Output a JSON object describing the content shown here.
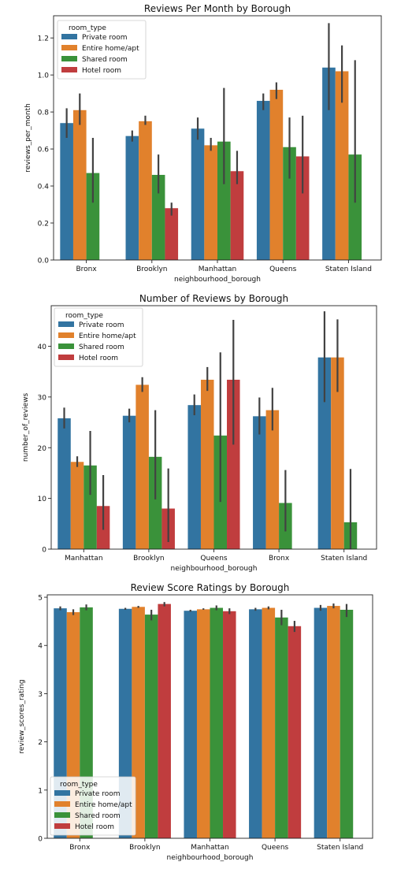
{
  "colors": {
    "Private room": "#3274a1",
    "Entire home/apt": "#e1812c",
    "Shared room": "#3a923a",
    "Hotel room": "#c03d3e",
    "error_bar": "#424242"
  },
  "chart_data": [
    {
      "type": "bar",
      "title": "Reviews Per Month by Borough",
      "xlabel": "neighbourhood_borough",
      "ylabel": "reviews_per_month",
      "categories": [
        "Bronx",
        "Brooklyn",
        "Manhattan",
        "Queens",
        "Staten Island"
      ],
      "ylim": [
        0,
        1.32
      ],
      "yticks": [
        0.0,
        0.2,
        0.4,
        0.6,
        0.8,
        1.0,
        1.2
      ],
      "ytick_labels": [
        "0.0",
        "0.2",
        "0.4",
        "0.6",
        "0.8",
        "1.0",
        "1.2"
      ],
      "legend": {
        "title": "room_type",
        "placement": "top-left"
      },
      "series": [
        {
          "name": "Private room",
          "values": [
            0.74,
            0.67,
            0.71,
            0.86,
            1.04
          ],
          "err_low": [
            0.66,
            0.64,
            0.65,
            0.81,
            0.81
          ],
          "err_high": [
            0.82,
            0.7,
            0.77,
            0.9,
            1.28
          ]
        },
        {
          "name": "Entire home/apt",
          "values": [
            0.81,
            0.75,
            0.62,
            0.92,
            1.02
          ],
          "err_low": [
            0.73,
            0.73,
            0.59,
            0.87,
            0.85
          ],
          "err_high": [
            0.9,
            0.78,
            0.66,
            0.96,
            1.16
          ]
        },
        {
          "name": "Shared room",
          "values": [
            0.47,
            0.46,
            0.64,
            0.61,
            0.57
          ],
          "err_low": [
            0.31,
            0.36,
            0.41,
            0.44,
            0.31
          ],
          "err_high": [
            0.66,
            0.57,
            0.93,
            0.77,
            1.08
          ]
        },
        {
          "name": "Hotel room",
          "values": [
            null,
            0.28,
            0.48,
            0.56,
            null
          ],
          "err_low": [
            null,
            0.24,
            0.41,
            0.36,
            null
          ],
          "err_high": [
            null,
            0.31,
            0.59,
            0.78,
            null
          ]
        }
      ]
    },
    {
      "type": "bar",
      "title": "Number of Reviews by Borough",
      "xlabel": "neighbourhood_borough",
      "ylabel": "number_of_reviews",
      "categories": [
        "Manhattan",
        "Brooklyn",
        "Queens",
        "Bronx",
        "Staten Island"
      ],
      "ylim": [
        0,
        48
      ],
      "yticks": [
        0,
        10,
        20,
        30,
        40
      ],
      "ytick_labels": [
        "0",
        "10",
        "20",
        "30",
        "40"
      ],
      "legend": {
        "title": "room_type",
        "placement": "top-left"
      },
      "series": [
        {
          "name": "Private room",
          "values": [
            25.8,
            26.3,
            28.4,
            26.2,
            37.8
          ],
          "err_low": [
            23.8,
            25.0,
            26.4,
            22.6,
            29.0
          ],
          "err_high": [
            27.9,
            27.7,
            30.5,
            29.9,
            46.9
          ]
        },
        {
          "name": "Entire home/apt",
          "values": [
            17.2,
            32.4,
            33.4,
            27.4,
            37.8
          ],
          "err_low": [
            16.2,
            31.0,
            31.2,
            23.4,
            31.0
          ],
          "err_high": [
            18.3,
            33.9,
            35.9,
            31.8,
            45.3
          ]
        },
        {
          "name": "Shared room",
          "values": [
            16.5,
            18.2,
            22.4,
            9.1,
            5.3
          ],
          "err_low": [
            10.7,
            9.8,
            9.3,
            3.5,
            0.0
          ],
          "err_high": [
            23.3,
            27.4,
            38.8,
            15.6,
            15.8
          ]
        },
        {
          "name": "Hotel room",
          "values": [
            8.5,
            8.0,
            33.4,
            null,
            null
          ],
          "err_low": [
            3.8,
            1.4,
            20.6,
            null,
            null
          ],
          "err_high": [
            14.6,
            15.9,
            45.2,
            null,
            null
          ]
        }
      ]
    },
    {
      "type": "bar",
      "title": "Review Score Ratings by Borough",
      "xlabel": "neighbourhood_borough",
      "ylabel": "review_scores_rating",
      "categories": [
        "Bronx",
        "Brooklyn",
        "Manhattan",
        "Queens",
        "Staten Island"
      ],
      "ylim": [
        0,
        5.05
      ],
      "yticks": [
        0,
        1,
        2,
        3,
        4,
        5
      ],
      "ytick_labels": [
        "0",
        "1",
        "2",
        "3",
        "4",
        "5"
      ],
      "legend": {
        "title": "room_type",
        "placement": "lower left"
      },
      "series": [
        {
          "name": "Private room",
          "values": [
            4.77,
            4.76,
            4.72,
            4.75,
            4.78
          ],
          "err_low": [
            4.73,
            4.74,
            4.7,
            4.72,
            4.72
          ],
          "err_high": [
            4.81,
            4.78,
            4.74,
            4.78,
            4.84
          ]
        },
        {
          "name": "Entire home/apt",
          "values": [
            4.69,
            4.8,
            4.75,
            4.78,
            4.82
          ],
          "err_low": [
            4.63,
            4.78,
            4.74,
            4.75,
            4.77
          ],
          "err_high": [
            4.75,
            4.82,
            4.77,
            4.81,
            4.87
          ]
        },
        {
          "name": "Shared room",
          "values": [
            4.79,
            4.64,
            4.78,
            4.58,
            4.74
          ],
          "err_low": [
            4.73,
            4.52,
            4.73,
            4.42,
            4.59
          ],
          "err_high": [
            4.85,
            4.74,
            4.83,
            4.74,
            4.86
          ]
        },
        {
          "name": "Hotel room",
          "values": [
            null,
            4.86,
            4.71,
            4.4,
            null
          ],
          "err_low": [
            null,
            4.81,
            4.65,
            4.28,
            null
          ],
          "err_high": [
            null,
            4.9,
            4.77,
            4.51,
            null
          ]
        }
      ]
    }
  ]
}
